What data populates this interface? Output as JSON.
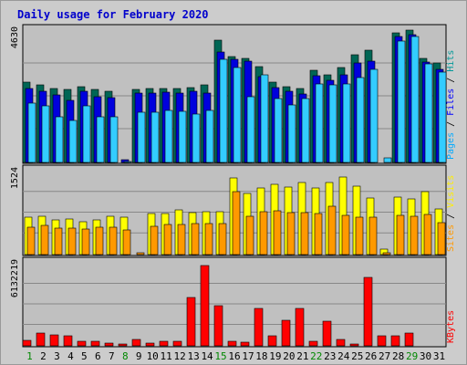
{
  "chart_data": {
    "type": "bar",
    "title": "Daily usage for February 2020",
    "days": [
      "1",
      "2",
      "3",
      "4",
      "5",
      "6",
      "7",
      "8",
      "9",
      "10",
      "11",
      "12",
      "13",
      "14",
      "15",
      "16",
      "17",
      "18",
      "19",
      "20",
      "21",
      "22",
      "23",
      "24",
      "25",
      "26",
      "27",
      "28",
      "29",
      "30",
      "31"
    ],
    "weekend_days": [
      "1",
      "8",
      "15",
      "22",
      "29"
    ],
    "panels": [
      {
        "id": "requests",
        "ymax_label": "4630",
        "ymax": 4630,
        "right_label_parts": [
          "Pages",
          " / ",
          "Files",
          " / ",
          "Hits"
        ],
        "right_label_colors": [
          "#00aaff",
          "#000000",
          "#0000ff",
          "#000000",
          "#009999"
        ],
        "series": [
          {
            "name": "Hits",
            "color": "#006655",
            "values": [
              2820,
              2720,
              2620,
              2560,
              2680,
              2560,
              2500,
              0,
              2580,
              2590,
              2600,
              2610,
              2650,
              2720,
              4320,
              3730,
              3680,
              3370,
              2820,
              2680,
              2600,
              3250,
              3090,
              3350,
              3780,
              3950,
              0,
              4580,
              4650,
              3650,
              3520
            ]
          },
          {
            "name": "Files",
            "color": "#0000dd",
            "values": [
              2620,
              2500,
              2370,
              2200,
              2500,
              2300,
              2280,
              100,
              2430,
              2450,
              2470,
              2450,
              2520,
              2440,
              3900,
              3620,
              3560,
              3030,
              2640,
              2500,
              2400,
              3040,
              2900,
              3090,
              3500,
              3580,
              0,
              4430,
              4500,
              3540,
              3280
            ]
          },
          {
            "name": "Pages",
            "color": "#33ccff",
            "values": [
              2080,
              2000,
              1600,
              1480,
              2000,
              1620,
              1600,
              40,
              1770,
              1780,
              1820,
              1810,
              1710,
              1820,
              3620,
              3330,
              2320,
              3080,
              2240,
              2040,
              2240,
              2750,
              2720,
              2760,
              3000,
              3280,
              160,
              4280,
              4430,
              3480,
              3170
            ]
          }
        ]
      },
      {
        "id": "visits",
        "ymax_label": "1524",
        "ymax": 1524,
        "right_label_parts": [
          "Sites",
          " / ",
          "Visits"
        ],
        "right_label_colors": [
          "#ff9900",
          "#000000",
          "#ffee00"
        ],
        "series": [
          {
            "name": "Visits",
            "color": "#ffff00",
            "values": [
              690,
              700,
              640,
              650,
              610,
              640,
              700,
              680,
              0,
              750,
              750,
              820,
              770,
              780,
              780,
              1400,
              1130,
              1220,
              1290,
              1240,
              1330,
              1230,
              1320,
              1420,
              1260,
              1040,
              100,
              1050,
              1020,
              1160,
              830
            ]
          },
          {
            "name": "Sites",
            "color": "#ff9900",
            "values": [
              510,
              530,
              480,
              490,
              470,
              500,
              500,
              450,
              40,
              520,
              550,
              560,
              570,
              570,
              570,
              1150,
              700,
              780,
              810,
              770,
              770,
              760,
              880,
              720,
              680,
              680,
              40,
              720,
              700,
              740,
              590
            ]
          }
        ]
      },
      {
        "id": "kbytes",
        "ymax_label": "6132219",
        "ymax": 6132219,
        "right_label_parts": [
          "KBytes"
        ],
        "right_label_colors": [
          "#ff0000"
        ],
        "series": [
          {
            "name": "KBytes",
            "color": "#ff0000",
            "values": [
              400000,
              950000,
              830000,
              720000,
              330000,
              350000,
              180000,
              110000,
              490000,
              190000,
              350000,
              340000,
              3580000,
              5980000,
              2980000,
              320000,
              280000,
              2790000,
              720000,
              1900000,
              2810000,
              360000,
              1830000,
              480000,
              110000,
              5080000,
              760000,
              750000,
              980000,
              0,
              0
            ]
          }
        ]
      }
    ]
  }
}
